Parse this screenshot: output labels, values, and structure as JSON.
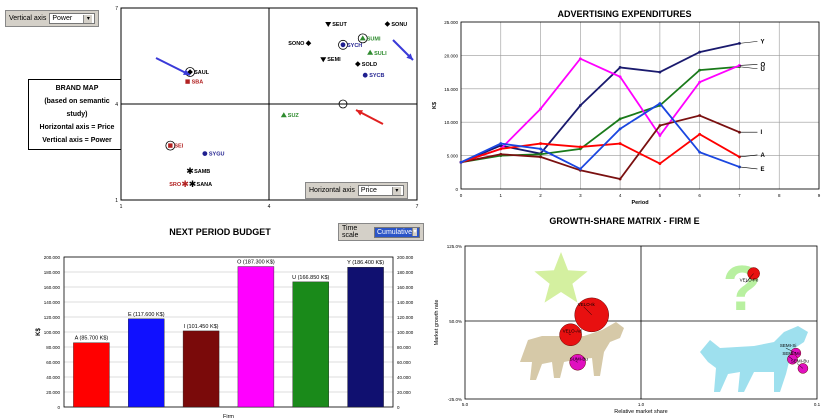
{
  "brand_map": {
    "vertical_label": "Vertical axis",
    "vertical_value": "Power",
    "horizontal_label": "Horizontal axis",
    "horizontal_value": "Price",
    "info_lines": [
      "BRAND MAP",
      "(based on semantic study)",
      "Horizontal axis = Price",
      "Vertical axis = Power"
    ],
    "y_ticks": [
      "7",
      "4",
      "1"
    ],
    "x_ticks": [
      "1",
      "4",
      "7"
    ],
    "colors": {
      "green": "#2e8b2e",
      "navy": "#1f1f8f",
      "red": "#b22222",
      "black": "#000000",
      "arrow_blue": "#3a3ad8",
      "arrow_red": "#e02020"
    },
    "points": [
      {
        "name": "SEUT",
        "x": 5.2,
        "y": 6.5,
        "color": "black",
        "shape": "tri-down"
      },
      {
        "name": "SONU",
        "x": 6.4,
        "y": 6.5,
        "color": "black",
        "shape": "diamond"
      },
      {
        "name": "SUMI",
        "x": 5.9,
        "y": 6.05,
        "color": "green",
        "shape": "tri",
        "circled": true
      },
      {
        "name": "SONO",
        "x": 4.8,
        "y": 5.9,
        "color": "black",
        "shape": "diamond"
      },
      {
        "name": "SYCH",
        "x": 5.5,
        "y": 5.85,
        "color": "navy",
        "shape": "dot",
        "circled": true
      },
      {
        "name": "SULI",
        "x": 6.05,
        "y": 5.6,
        "color": "green",
        "shape": "tri"
      },
      {
        "name": "SEMI",
        "x": 5.1,
        "y": 5.4,
        "color": "black",
        "shape": "tri-down"
      },
      {
        "name": "SOLD",
        "x": 5.8,
        "y": 5.25,
        "color": "black",
        "shape": "diamond"
      },
      {
        "name": "SYCB",
        "x": 5.95,
        "y": 4.9,
        "color": "navy",
        "shape": "dot"
      },
      {
        "name": "SAUL",
        "x": 2.4,
        "y": 5.0,
        "color": "black",
        "shape": "diamond",
        "circled": true
      },
      {
        "name": "SBA",
        "x": 2.35,
        "y": 4.7,
        "color": "red",
        "shape": "square"
      },
      {
        "name": "SUZ",
        "x": 4.3,
        "y": 3.65,
        "color": "green",
        "shape": "tri"
      },
      {
        "name": "SEI",
        "x": 2.0,
        "y": 2.7,
        "color": "red",
        "shape": "square",
        "circled": true
      },
      {
        "name": "SYGU",
        "x": 2.7,
        "y": 2.45,
        "color": "navy",
        "shape": "dot"
      },
      {
        "name": "SAMB",
        "x": 2.4,
        "y": 1.9,
        "color": "black",
        "shape": "star"
      },
      {
        "name": "SRO",
        "x": 2.3,
        "y": 1.5,
        "color": "red",
        "shape": "star"
      },
      {
        "name": "SANA",
        "x": 2.45,
        "y": 1.5,
        "color": "black",
        "shape": "star"
      }
    ],
    "red_ring": {
      "x": 5.5,
      "y": 4.0
    }
  },
  "advertising": {
    "title": "ADVERTISING EXPENDITURES",
    "chart_data": {
      "type": "line",
      "title": "ADVERTISING EXPENDITURES",
      "xlabel": "Period",
      "ylabel": "K$",
      "x": [
        0,
        1,
        2,
        3,
        4,
        5,
        6,
        7
      ],
      "xlim": [
        0,
        9
      ],
      "ylim": [
        0,
        25000
      ],
      "x_ticks": [
        "0",
        "1",
        "2",
        "3",
        "4",
        "5",
        "6",
        "7",
        "8",
        "9"
      ],
      "y_ticks": [
        "0",
        "5.000",
        "10.000",
        "15.000",
        "20.000",
        "25.000"
      ],
      "series": [
        {
          "name": "Y",
          "color": "#1a1a6e",
          "values": [
            4000,
            6500,
            5300,
            12500,
            18200,
            17500,
            20500,
            21800
          ]
        },
        {
          "name": "U",
          "color": "#1a7a1a",
          "values": [
            4000,
            5000,
            5200,
            6000,
            10500,
            12500,
            17800,
            18300
          ]
        },
        {
          "name": "O",
          "color": "#ff00ff",
          "values": [
            4000,
            6000,
            12000,
            19500,
            16800,
            8000,
            16000,
            18500
          ]
        },
        {
          "name": "I",
          "color": "#7a1010",
          "values": [
            4000,
            5200,
            4800,
            2800,
            1500,
            9500,
            11000,
            8500
          ]
        },
        {
          "name": "A",
          "color": "#ff0000",
          "values": [
            4000,
            6000,
            6800,
            6300,
            6800,
            3800,
            8200,
            4800
          ]
        },
        {
          "name": "E",
          "color": "#1a46e0",
          "values": [
            4000,
            6800,
            6000,
            3000,
            9000,
            12800,
            5500,
            3300
          ]
        }
      ]
    }
  },
  "budget": {
    "title": "NEXT PERIOD BUDGET",
    "time_scale_label": "Time scale",
    "time_scale_value": "Cumulative",
    "chart_data": {
      "type": "bar",
      "title": "NEXT PERIOD BUDGET",
      "xlabel": "Firm",
      "ylabel": "K$",
      "ylim": [
        0,
        200000
      ],
      "y_ticks": [
        "0",
        "20.000",
        "40.000",
        "60.000",
        "80.000",
        "100.000",
        "120.000",
        "140.000",
        "160.000",
        "180.000",
        "200.000"
      ],
      "categories": [
        "A",
        "E",
        "I",
        "O",
        "U",
        "Y"
      ],
      "values": [
        85700,
        117600,
        101450,
        187300,
        166850,
        186400
      ],
      "labels": [
        "A (85.700 K$)",
        "E (117.600 K$)",
        "I (101.450 K$)",
        "O (187.300 K$)",
        "U (166.850 K$)",
        "Y (186.400 K$)"
      ],
      "colors": [
        "#ff0000",
        "#1010ff",
        "#7a0a0a",
        "#ff00ff",
        "#1a8a1a",
        "#101070"
      ]
    }
  },
  "growth": {
    "title": "GROWTH-SHARE MATRIX - FIRM E",
    "xlabel": "Relative market share",
    "ylabel": "Market growth rate",
    "y_ticks": [
      "125.0%",
      "50.0%",
      "-25.0%"
    ],
    "x_ticks": [
      "5.0",
      "1.0",
      "0.1"
    ],
    "colors": {
      "star": "#d4f0a0",
      "cow": "#d6c9a8",
      "dog": "#9ee0ee",
      "question": "#b8f0a0",
      "bubble": "#e81010",
      "bubble_alt": "#e010c0"
    },
    "bubbles": [
      {
        "name": "VELO-Fe",
        "x": 0.82,
        "y": 0.82,
        "r": 6,
        "color": "bubble"
      },
      {
        "name": "VELO-Ik",
        "x": 0.36,
        "y": 0.55,
        "r": 17,
        "color": "bubble"
      },
      {
        "name": "VELO-Ad",
        "x": 0.3,
        "y": 0.42,
        "r": 11,
        "color": "bubble"
      },
      {
        "name": "SUMI-Bu",
        "x": 0.32,
        "y": 0.24,
        "r": 8,
        "color": "bubble_alt"
      },
      {
        "name": "SEMI-Si",
        "x": 0.94,
        "y": 0.3,
        "r": 5,
        "color": "bubble_alt"
      },
      {
        "name": "SEMI-Mi",
        "x": 0.93,
        "y": 0.26,
        "r": 5,
        "color": "bubble_alt"
      },
      {
        "name": "SEMI-Bu",
        "x": 0.96,
        "y": 0.2,
        "r": 5,
        "color": "bubble_alt"
      }
    ]
  }
}
